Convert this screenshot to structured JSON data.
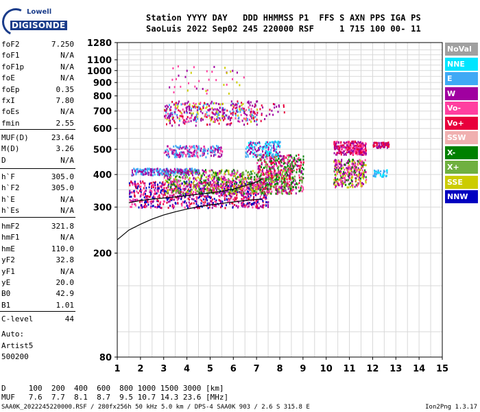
{
  "logo": {
    "line1": "Lowell",
    "line2": "DIGISONDE"
  },
  "header": {
    "labels": "Station YYYY DAY   DDD HHMMSS P1  FFS S AXN PPS IGA PS",
    "values": "SaoLuis 2022 Sep02 245 220000 RSF     1 715 100 00- 11"
  },
  "params_group1": [
    {
      "name": "foF2",
      "value": "7.250"
    },
    {
      "name": "foF1",
      "value": "N/A"
    },
    {
      "name": "foF1p",
      "value": "N/A"
    },
    {
      "name": "foE",
      "value": "N/A"
    },
    {
      "name": "foEp",
      "value": "0.35"
    },
    {
      "name": "fxI",
      "value": "7.80"
    },
    {
      "name": "foEs",
      "value": "N/A"
    },
    {
      "name": "fmin",
      "value": "2.55"
    }
  ],
  "params_group2": [
    {
      "name": "MUF(D)",
      "value": "23.64"
    },
    {
      "name": "M(D)",
      "value": "3.26"
    },
    {
      "name": "D",
      "value": "N/A"
    }
  ],
  "params_group3": [
    {
      "name": "h`F",
      "value": "305.0"
    },
    {
      "name": "h`F2",
      "value": "305.0"
    },
    {
      "name": "h`E",
      "value": "N/A"
    },
    {
      "name": "h`Es",
      "value": "N/A"
    }
  ],
  "params_group4": [
    {
      "name": "hmF2",
      "value": "321.8"
    },
    {
      "name": "hmF1",
      "value": "N/A"
    },
    {
      "name": "hmE",
      "value": "110.0"
    },
    {
      "name": "yF2",
      "value": "32.8"
    },
    {
      "name": "yF1",
      "value": "N/A"
    },
    {
      "name": "yE",
      "value": "20.0"
    },
    {
      "name": "B0",
      "value": "42.9"
    },
    {
      "name": "B1",
      "value": "1.01"
    }
  ],
  "clevel": {
    "name": "C-level",
    "value": "44"
  },
  "auto_lines": [
    "Auto:",
    "Artist5",
    "500200"
  ],
  "legend": [
    {
      "label": "NoVal",
      "color": "#a0a0a0"
    },
    {
      "label": "NNE",
      "color": "#00e5ff"
    },
    {
      "label": "E",
      "color": "#3fa9f5"
    },
    {
      "label": "W",
      "color": "#a000a0"
    },
    {
      "label": "Vo-",
      "color": "#ff3fa0"
    },
    {
      "label": "Vo+",
      "color": "#e8003c"
    },
    {
      "label": "SSW",
      "color": "#f0b0b0"
    },
    {
      "label": "X-",
      "color": "#008000"
    },
    {
      "label": "X+",
      "color": "#70b040"
    },
    {
      "label": "SSE",
      "color": "#cccc00"
    },
    {
      "label": "NNW",
      "color": "#0000c0"
    }
  ],
  "footer": {
    "line1": "D     100  200  400  600  800 1000 1500 3000 [km]",
    "line2": "MUF   7.6  7.7  8.1  8.7  9.5 10.7 14.3 23.6 [MHz]",
    "line3": "SAA0K_2022245220000.RSF / 280fx256h 50 kHz 5.0 km / DPS-4 SAA0K 903 / 2.6 S 315.8 E",
    "version": "Ion2Png 1.3.17"
  },
  "chart_data": {
    "type": "scatter",
    "xlabel": "",
    "ylabel": "",
    "xlim": [
      1,
      15
    ],
    "ylim": [
      80,
      1280
    ],
    "x_ticks": [
      1,
      2,
      3,
      4,
      5,
      6,
      7,
      8,
      9,
      10,
      11,
      12,
      13,
      14,
      15
    ],
    "y_ticks": [
      80,
      200,
      300,
      400,
      500,
      600,
      700,
      800,
      900,
      1000,
      1100,
      1280
    ],
    "y_scale": "log",
    "grid": true,
    "legend_position": "right",
    "profile_curve": [
      [
        1.0,
        225
      ],
      [
        1.5,
        245
      ],
      [
        2.0,
        258
      ],
      [
        2.5,
        270
      ],
      [
        3.0,
        280
      ],
      [
        3.5,
        288
      ],
      [
        4.0,
        295
      ],
      [
        4.5,
        301
      ],
      [
        5.0,
        306
      ],
      [
        5.5,
        310
      ],
      [
        6.0,
        314
      ],
      [
        6.5,
        318
      ],
      [
        7.0,
        321
      ],
      [
        7.25,
        322
      ]
    ],
    "trace_curve": [
      [
        1.5,
        312
      ],
      [
        2.0,
        318
      ],
      [
        2.5,
        322
      ],
      [
        3.0,
        325
      ],
      [
        3.5,
        328
      ],
      [
        4.0,
        332
      ],
      [
        4.5,
        336
      ],
      [
        5.0,
        340
      ],
      [
        5.5,
        345
      ],
      [
        6.0,
        352
      ],
      [
        6.5,
        362
      ],
      [
        7.0,
        375
      ],
      [
        7.25,
        385
      ]
    ],
    "echo_regions": [
      {
        "x": [
          1.5,
          7.5
        ],
        "y": [
          300,
          380
        ],
        "density": 900,
        "colors": [
          "#a000a0",
          "#0000c0",
          "#ff3fa0",
          "#e8003c"
        ]
      },
      {
        "x": [
          3.0,
          8.5
        ],
        "y": [
          340,
          420
        ],
        "density": 700,
        "colors": [
          "#ff3fa0",
          "#a000a0",
          "#cccc00",
          "#008000",
          "#70b040"
        ]
      },
      {
        "x": [
          1.6,
          4.5
        ],
        "y": [
          400,
          425
        ],
        "density": 200,
        "colors": [
          "#a000a0",
          "#3fa9f5"
        ]
      },
      {
        "x": [
          7.0,
          9.0
        ],
        "y": [
          340,
          480
        ],
        "density": 500,
        "colors": [
          "#008000",
          "#70b040",
          "#ff3fa0",
          "#e8003c",
          "#a000a0"
        ]
      },
      {
        "x": [
          10.3,
          11.7
        ],
        "y": [
          480,
          540
        ],
        "density": 250,
        "colors": [
          "#ff3fa0",
          "#a000a0",
          "#e8003c"
        ]
      },
      {
        "x": [
          10.3,
          11.7
        ],
        "y": [
          360,
          460
        ],
        "density": 300,
        "colors": [
          "#ff3fa0",
          "#a000a0",
          "#008000",
          "#cccc00"
        ]
      },
      {
        "x": [
          12.0,
          12.7
        ],
        "y": [
          510,
          535
        ],
        "density": 60,
        "colors": [
          "#e8003c",
          "#a000a0"
        ]
      },
      {
        "x": [
          12.0,
          12.6
        ],
        "y": [
          395,
          420
        ],
        "density": 40,
        "colors": [
          "#00e5ff",
          "#3fa9f5"
        ]
      },
      {
        "x": [
          3.0,
          5.5
        ],
        "y": [
          470,
          520
        ],
        "density": 200,
        "colors": [
          "#a000a0",
          "#ff3fa0",
          "#3fa9f5"
        ]
      },
      {
        "x": [
          6.5,
          8.0
        ],
        "y": [
          470,
          540
        ],
        "density": 160,
        "colors": [
          "#3fa9f5",
          "#00e5ff",
          "#a000a0"
        ]
      },
      {
        "x": [
          3.0,
          7.0
        ],
        "y": [
          640,
          760
        ],
        "density": 260,
        "colors": [
          "#ff3fa0",
          "#a000a0",
          "#cccc00",
          "#3fa9f5"
        ]
      },
      {
        "x": [
          3.0,
          8.2
        ],
        "y": [
          620,
          770
        ],
        "density": 160,
        "colors": [
          "#a000a0",
          "#e8003c"
        ]
      },
      {
        "x": [
          3.0,
          6.5
        ],
        "y": [
          820,
          1050
        ],
        "density": 40,
        "colors": [
          "#ff3fa0",
          "#a000a0",
          "#cccc00"
        ]
      }
    ]
  }
}
